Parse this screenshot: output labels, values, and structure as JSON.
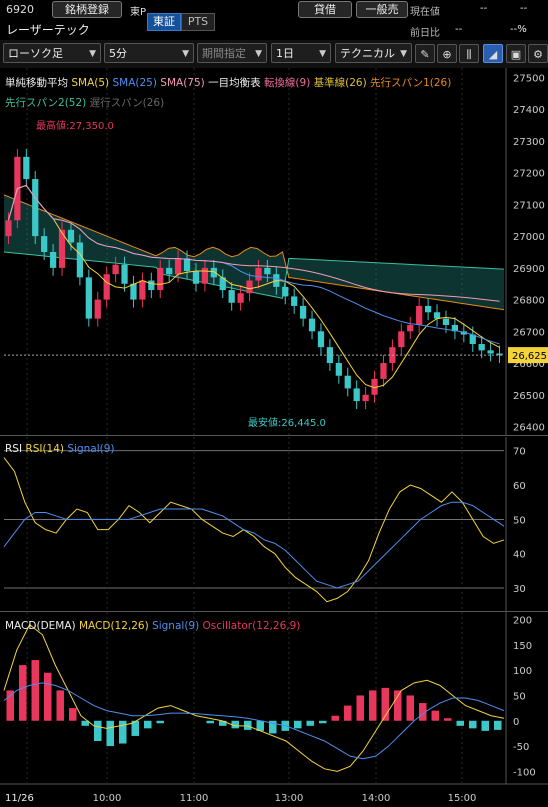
{
  "header": {
    "code": "6920",
    "name": "レーザーテック",
    "register_btn": "銘柄登録",
    "market": "東P",
    "seg_tosho": "東証",
    "seg_pts": "PTS",
    "lend_btn": "貸借",
    "general_btn": "一般売",
    "price_label": "現在値",
    "price_value": "--",
    "prev_label": "前日比",
    "prev_value": "--",
    "prev_pct": "--%",
    "dash1": "--",
    "dash2": "--"
  },
  "toolbar": {
    "chart_type": "ローソク足",
    "interval": "5分",
    "period": "期間指定",
    "range": "1日",
    "technical": "テクニカル"
  },
  "colors": {
    "up": "#e8365d",
    "down": "#3cc8c8",
    "sma5": "#f5d33c",
    "sma25": "#4f8ff0",
    "sma75": "#f29bb5",
    "tenkan": "#f06a9c",
    "kijun": "#e0c03a",
    "span1": "#e68a1a",
    "span2": "#3cbfa0"
  },
  "main_legend": {
    "title": "単純移動平均",
    "sma5": "SMA(5)",
    "sma25": "SMA(25)",
    "sma75": "SMA(75)",
    "ichimoku": "一目均衡表",
    "tenkan": "転換線(9)",
    "kijun": "基準線(26)",
    "span1": "先行スパン1(26)",
    "span2": "先行スパン2(52)",
    "chikou": "遅行スパン(26)"
  },
  "annotations": {
    "high": "最高値:27,350.0",
    "low": "最安値:26,445.0",
    "current_price": "26,625"
  },
  "rsi_legend": {
    "title": "RSI",
    "rsi": "RSI(14)",
    "signal": "Signal(9)"
  },
  "macd_legend": {
    "title": "MACD(DEMA)",
    "macd": "MACD(12,26)",
    "signal": "Signal(9)",
    "osc": "Oscillator(12,26,9)"
  },
  "chart_data": [
    {
      "type": "candlestick",
      "y_ticks": [
        27500,
        27400,
        27300,
        27200,
        27100,
        27000,
        26900,
        26800,
        26700,
        26600,
        26500,
        26400
      ],
      "ylim": [
        26370,
        27530
      ],
      "x_labels": [
        "11/26",
        "10:00",
        "11:00",
        "13:00",
        "14:00",
        "15:00"
      ],
      "high": 27350,
      "low": 26445,
      "last": 26625
    },
    {
      "type": "line",
      "title": "RSI",
      "y_ticks": [
        70,
        60,
        50,
        40,
        30
      ],
      "ylim": [
        23,
        74
      ],
      "series": [
        {
          "name": "RSI(14)",
          "values": [
            68,
            64,
            55,
            49,
            47,
            46,
            50,
            53,
            52,
            47,
            47,
            50,
            54,
            52,
            49,
            52,
            55,
            54,
            53,
            50,
            48,
            46,
            45,
            47,
            45,
            42,
            40,
            36,
            33,
            31,
            29,
            26,
            27,
            29,
            33,
            38,
            46,
            53,
            58,
            60,
            59,
            57,
            55,
            58,
            55,
            50,
            45,
            43,
            44
          ]
        },
        {
          "name": "Signal(9)",
          "values": [
            42,
            46,
            50,
            52,
            52,
            51,
            50,
            50,
            50,
            50,
            50,
            50,
            50,
            51,
            52,
            53,
            53,
            53,
            53,
            53,
            52,
            51,
            49,
            47,
            46,
            44,
            43,
            41,
            38,
            35,
            32,
            31,
            30,
            31,
            32,
            35,
            38,
            41,
            44,
            47,
            50,
            52,
            54,
            55,
            55,
            54,
            52,
            50,
            48
          ]
        }
      ]
    },
    {
      "type": "bar+line",
      "title": "MACD(DEMA)",
      "y_ticks": [
        200,
        150,
        100,
        50,
        0,
        -50,
        -100
      ],
      "ylim": [
        -125,
        215
      ],
      "series": [
        {
          "name": "MACD(12,26)",
          "values": [
            60,
            140,
            190,
            170,
            110,
            60,
            10,
            -10,
            -15,
            -10,
            -5,
            10,
            25,
            30,
            20,
            10,
            5,
            0,
            -10,
            -10,
            -20,
            -30,
            -40,
            -60,
            -80,
            -95,
            -100,
            -90,
            -60,
            -20,
            20,
            60,
            75,
            80,
            70,
            50,
            30,
            20,
            10,
            5
          ]
        },
        {
          "name": "Signal(9)",
          "values": [
            40,
            60,
            70,
            75,
            70,
            60,
            45,
            30,
            20,
            15,
            10,
            10,
            12,
            15,
            15,
            14,
            12,
            10,
            8,
            5,
            0,
            -5,
            -10,
            -20,
            -30,
            -40,
            -55,
            -70,
            -75,
            -70,
            -50,
            -25,
            0,
            20,
            35,
            45,
            45,
            40,
            30,
            20
          ]
        },
        {
          "name": "Oscillator(12,26,9)",
          "values": [
            60,
            110,
            120,
            95,
            60,
            25,
            -10,
            -40,
            -50,
            -45,
            -30,
            -15,
            -5,
            0,
            0,
            0,
            -5,
            -10,
            -15,
            -18,
            -20,
            -25,
            -20,
            -15,
            -10,
            -5,
            10,
            30,
            50,
            60,
            65,
            60,
            50,
            35,
            20,
            5,
            -10,
            -15,
            -20,
            -18
          ]
        }
      ]
    }
  ]
}
